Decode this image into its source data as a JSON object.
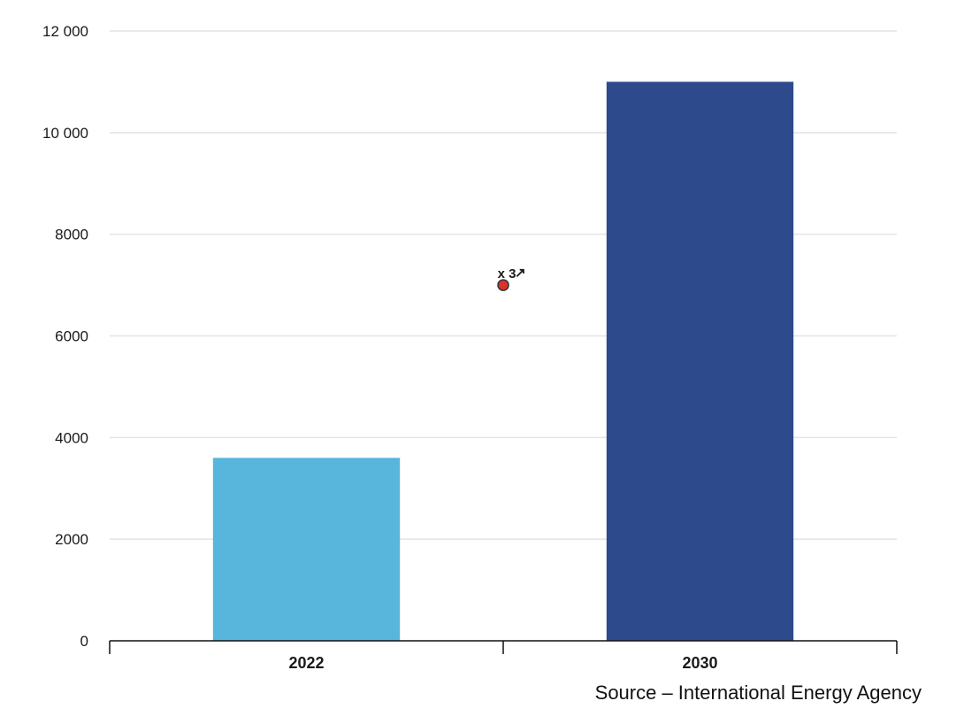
{
  "chart_data": {
    "type": "bar",
    "categories": [
      "2022",
      "2030"
    ],
    "values": [
      3600,
      11000
    ],
    "colors": [
      "#58b5dc",
      "#2d4a8c"
    ],
    "ylim": [
      0,
      12000
    ],
    "yticks": [
      0,
      2000,
      4000,
      6000,
      8000,
      10000,
      12000
    ],
    "ytick_labels": [
      "0",
      "2000",
      "4000",
      "6000",
      "8000",
      "10 000",
      "12 000"
    ],
    "grid": true,
    "annotation": {
      "text": "x 3",
      "arrow": "↗",
      "marker_color": "#d9342b",
      "y": 7000
    }
  },
  "source": "Source – International Energy Agency"
}
